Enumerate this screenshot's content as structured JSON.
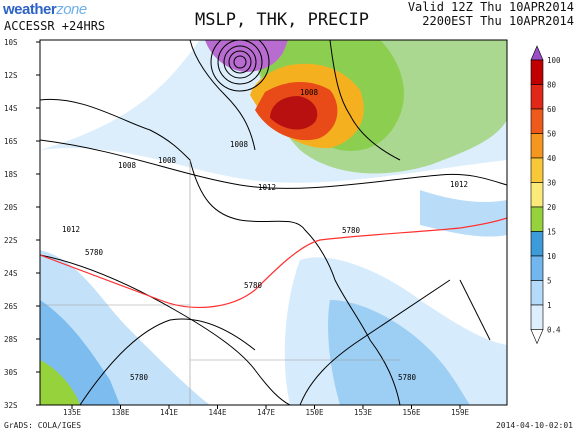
{
  "brand": {
    "name_main": "weather",
    "name_accent": "zone"
  },
  "header": {
    "model": "ACCESSR +24HRS",
    "title": "MSLP, THK, PRECIP",
    "valid_line": "Valid 12Z Thu 10APR2014",
    "local_line": "2200EST Thu 10APR2014"
  },
  "footer": {
    "credit": "GrADS: COLA/IGES",
    "timestamp": "2014-04-10-02:01"
  },
  "map": {
    "lat_labels": [
      "10S",
      "12S",
      "14S",
      "16S",
      "18S",
      "20S",
      "22S",
      "24S",
      "26S",
      "28S",
      "30S",
      "32S"
    ],
    "lon_labels": [
      "135E",
      "138E",
      "141E",
      "144E",
      "147E",
      "150E",
      "153E",
      "156E",
      "159E"
    ],
    "isobar_labels": [
      "1008",
      "1008",
      "1008",
      "1008",
      "1012",
      "1012",
      "1012"
    ],
    "thickness_labels": [
      "5780",
      "5780",
      "5780",
      "5780",
      "5780"
    ]
  },
  "legend": {
    "unit_values": [
      "100",
      "80",
      "60",
      "50",
      "40",
      "30",
      "20",
      "15",
      "10",
      "5",
      "1",
      "0.4"
    ],
    "colors": [
      "#9b4fc7",
      "#c00000",
      "#e02818",
      "#ee5a1c",
      "#f5961e",
      "#f8c838",
      "#fbe97a",
      "#96d23c",
      "#3c9bd8",
      "#71b6ee",
      "#b4dcfa",
      "#ddeefc"
    ]
  },
  "colors": {
    "thickness_line": "#ff3030",
    "isobar": "#000000",
    "precip_light": "#b4dcfa",
    "precip_mid": "#71b6ee"
  }
}
